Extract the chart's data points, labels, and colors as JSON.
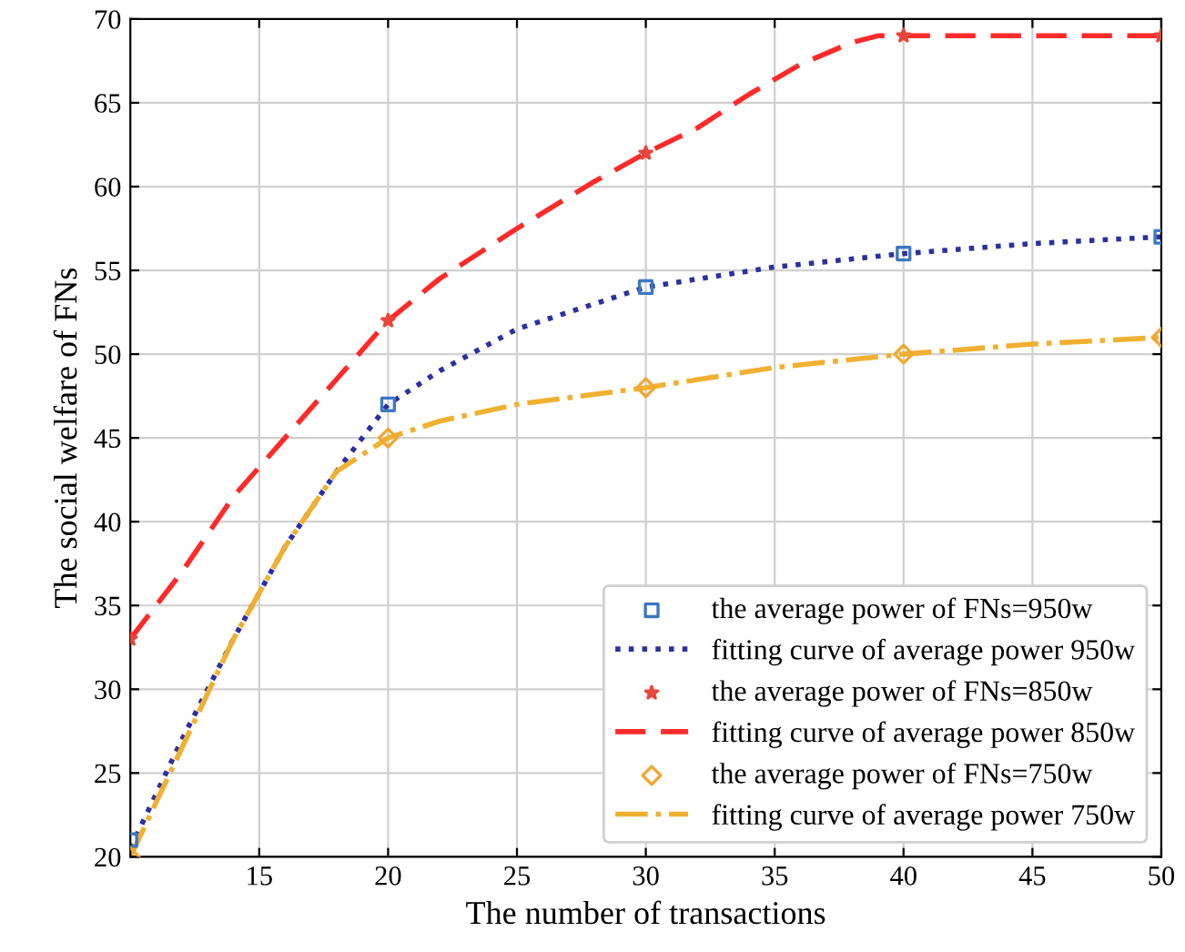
{
  "chart_data": {
    "type": "line",
    "xlabel": "The number of transactions",
    "ylabel": "The social welfare of FNs",
    "xlim": [
      10,
      50
    ],
    "xticks": [
      15,
      20,
      25,
      30,
      35,
      40,
      45,
      50
    ],
    "ylim": [
      20,
      70
    ],
    "yticks": [
      20,
      25,
      30,
      35,
      40,
      45,
      50,
      55,
      60,
      65,
      70
    ],
    "grid": true,
    "legend": "bottom right",
    "series": [
      {
        "name": "the average power of FNs=950w",
        "type": "scatter",
        "marker": "square",
        "color": "#3a78c2",
        "x": [
          10,
          20,
          30,
          40,
          50
        ],
        "values": [
          21,
          47,
          54,
          56,
          57
        ]
      },
      {
        "name": "fitting curve of average power 950w",
        "type": "line",
        "line_style": "dotted",
        "color": "#2c30a0",
        "x": [
          10,
          12,
          14,
          16,
          18,
          20,
          22,
          25,
          28,
          30,
          35,
          40,
          45,
          50
        ],
        "values": [
          20.5,
          27,
          33,
          38.5,
          43,
          47,
          49,
          51.5,
          53,
          54,
          55.2,
          56,
          56.6,
          57
        ]
      },
      {
        "name": "the average power of FNs=850w",
        "type": "scatter",
        "marker": "star",
        "color": "#e8453c",
        "x": [
          10,
          20,
          30,
          40,
          50
        ],
        "values": [
          33,
          52,
          62,
          69,
          69
        ]
      },
      {
        "name": "fitting curve of average power 850w",
        "type": "line",
        "line_style": "dashed",
        "color": "#ff2a2a",
        "x": [
          10,
          12,
          14,
          16,
          18,
          20,
          22,
          25,
          28,
          30,
          32,
          34,
          36,
          38,
          39,
          40,
          45,
          50
        ],
        "values": [
          33,
          37,
          41.5,
          45,
          48.5,
          52,
          54.5,
          57.5,
          60.3,
          62,
          63.5,
          65.5,
          67.3,
          68.6,
          69,
          69,
          69,
          69
        ]
      },
      {
        "name": "the average power of FNs=750w",
        "type": "scatter",
        "marker": "diamond",
        "color": "#f0a830",
        "x": [
          10,
          20,
          30,
          40,
          50
        ],
        "values": [
          20,
          45,
          48,
          50,
          51
        ]
      },
      {
        "name": "fitting curve of average power 750w",
        "type": "line",
        "line_style": "dashdot",
        "color": "#f0b030",
        "x": [
          10,
          12,
          14,
          16,
          18,
          20,
          22,
          25,
          28,
          30,
          35,
          40,
          45,
          50
        ],
        "values": [
          20,
          26.5,
          33,
          38.5,
          43,
          45,
          46,
          47,
          47.6,
          48,
          49.2,
          50,
          50.6,
          51
        ]
      }
    ]
  }
}
